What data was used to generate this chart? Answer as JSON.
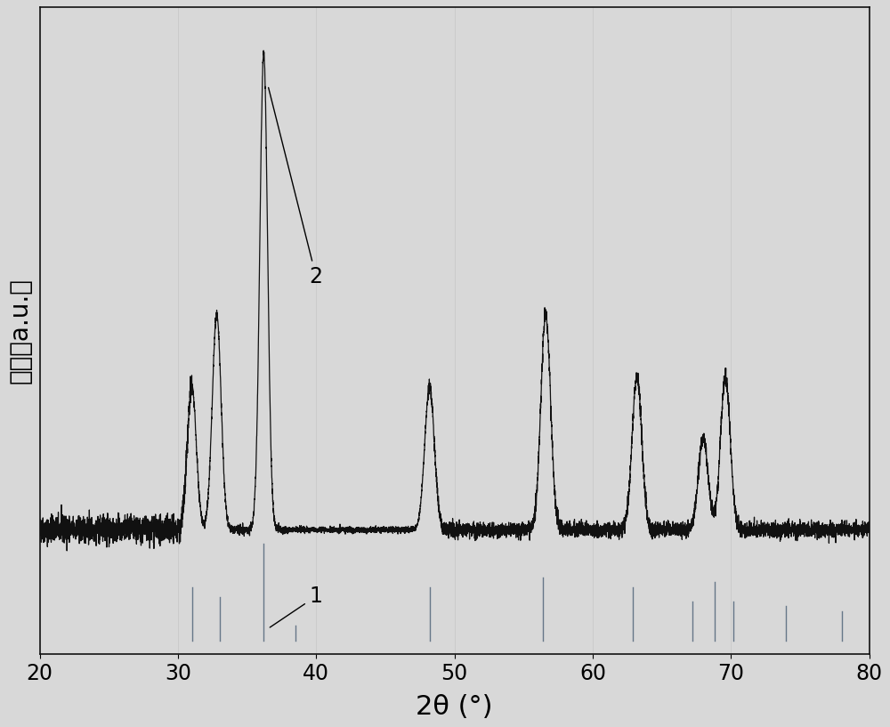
{
  "xlim": [
    20,
    80
  ],
  "xlabel": "2θ (°)",
  "ylabel": "强度（a.u.）",
  "xlabel_fontsize": 22,
  "ylabel_fontsize": 20,
  "tick_fontsize": 17,
  "background_color": "#d8d8d8",
  "curve_color": "#111111",
  "bar_color": "#667788",
  "label1_text": "1",
  "label2_text": "2",
  "curve_peaks": [
    31.0,
    32.8,
    36.2,
    48.2,
    56.6,
    63.2,
    68.0,
    69.6
  ],
  "curve_heights": [
    0.28,
    0.42,
    0.93,
    0.28,
    0.42,
    0.3,
    0.18,
    0.3
  ],
  "curve_widths": [
    0.32,
    0.32,
    0.28,
    0.35,
    0.35,
    0.35,
    0.35,
    0.35
  ],
  "baseline": 0.065,
  "noise_amp": 0.007,
  "ref_positions": [
    31.0,
    33.0,
    36.2,
    38.5,
    48.2,
    56.4,
    62.9,
    67.2,
    68.8,
    70.2,
    74.0,
    78.0
  ],
  "ref_heights_norm": [
    0.55,
    0.45,
    1.0,
    0.15,
    0.55,
    0.65,
    0.55,
    0.4,
    0.6,
    0.4,
    0.35,
    0.3
  ]
}
